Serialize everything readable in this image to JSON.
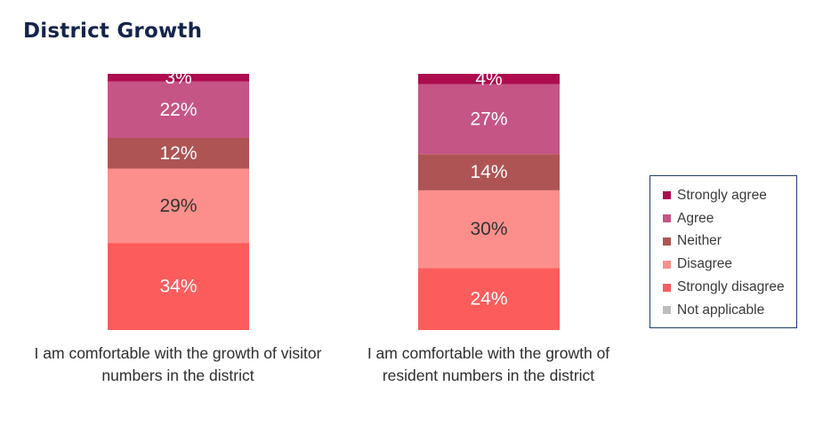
{
  "title": "District Growth",
  "chart_data": {
    "type": "bar",
    "stacked": true,
    "title": "District Growth",
    "categories": [
      "I am comfortable with the growth of visitor numbers in the district",
      "I am comfortable with the growth of resident numbers in the district"
    ],
    "category_label_lines": [
      [
        "I am comfortable with the growth of visitor",
        "numbers in the district"
      ],
      [
        "I am comfortable with the growth of",
        "resident numbers in the district"
      ]
    ],
    "series": [
      {
        "name": "Strongly disagree",
        "color": "#fd5c5c",
        "label_color": "#ffffff",
        "values": [
          34,
          24
        ]
      },
      {
        "name": "Disagree",
        "color": "#fc8f8c",
        "label_color": "#333333",
        "values": [
          29,
          30
        ]
      },
      {
        "name": "Neither",
        "color": "#ae5454",
        "label_color": "#ffffff",
        "values": [
          12,
          14
        ]
      },
      {
        "name": "Agree",
        "color": "#c55585",
        "label_color": "#ffffff",
        "values": [
          22,
          27
        ]
      },
      {
        "name": "Strongly agree",
        "color": "#ad0c4e",
        "label_color": "#ffffff",
        "values": [
          3,
          4
        ]
      },
      {
        "name": "Not applicable",
        "color": "#bdbdbd",
        "label_color": "#333333",
        "values": [
          0,
          0
        ]
      }
    ],
    "value_suffix": "%",
    "legend_position": "right",
    "legend_order": [
      "Strongly agree",
      "Agree",
      "Neither",
      "Disagree",
      "Strongly disagree",
      "Not applicable"
    ]
  }
}
